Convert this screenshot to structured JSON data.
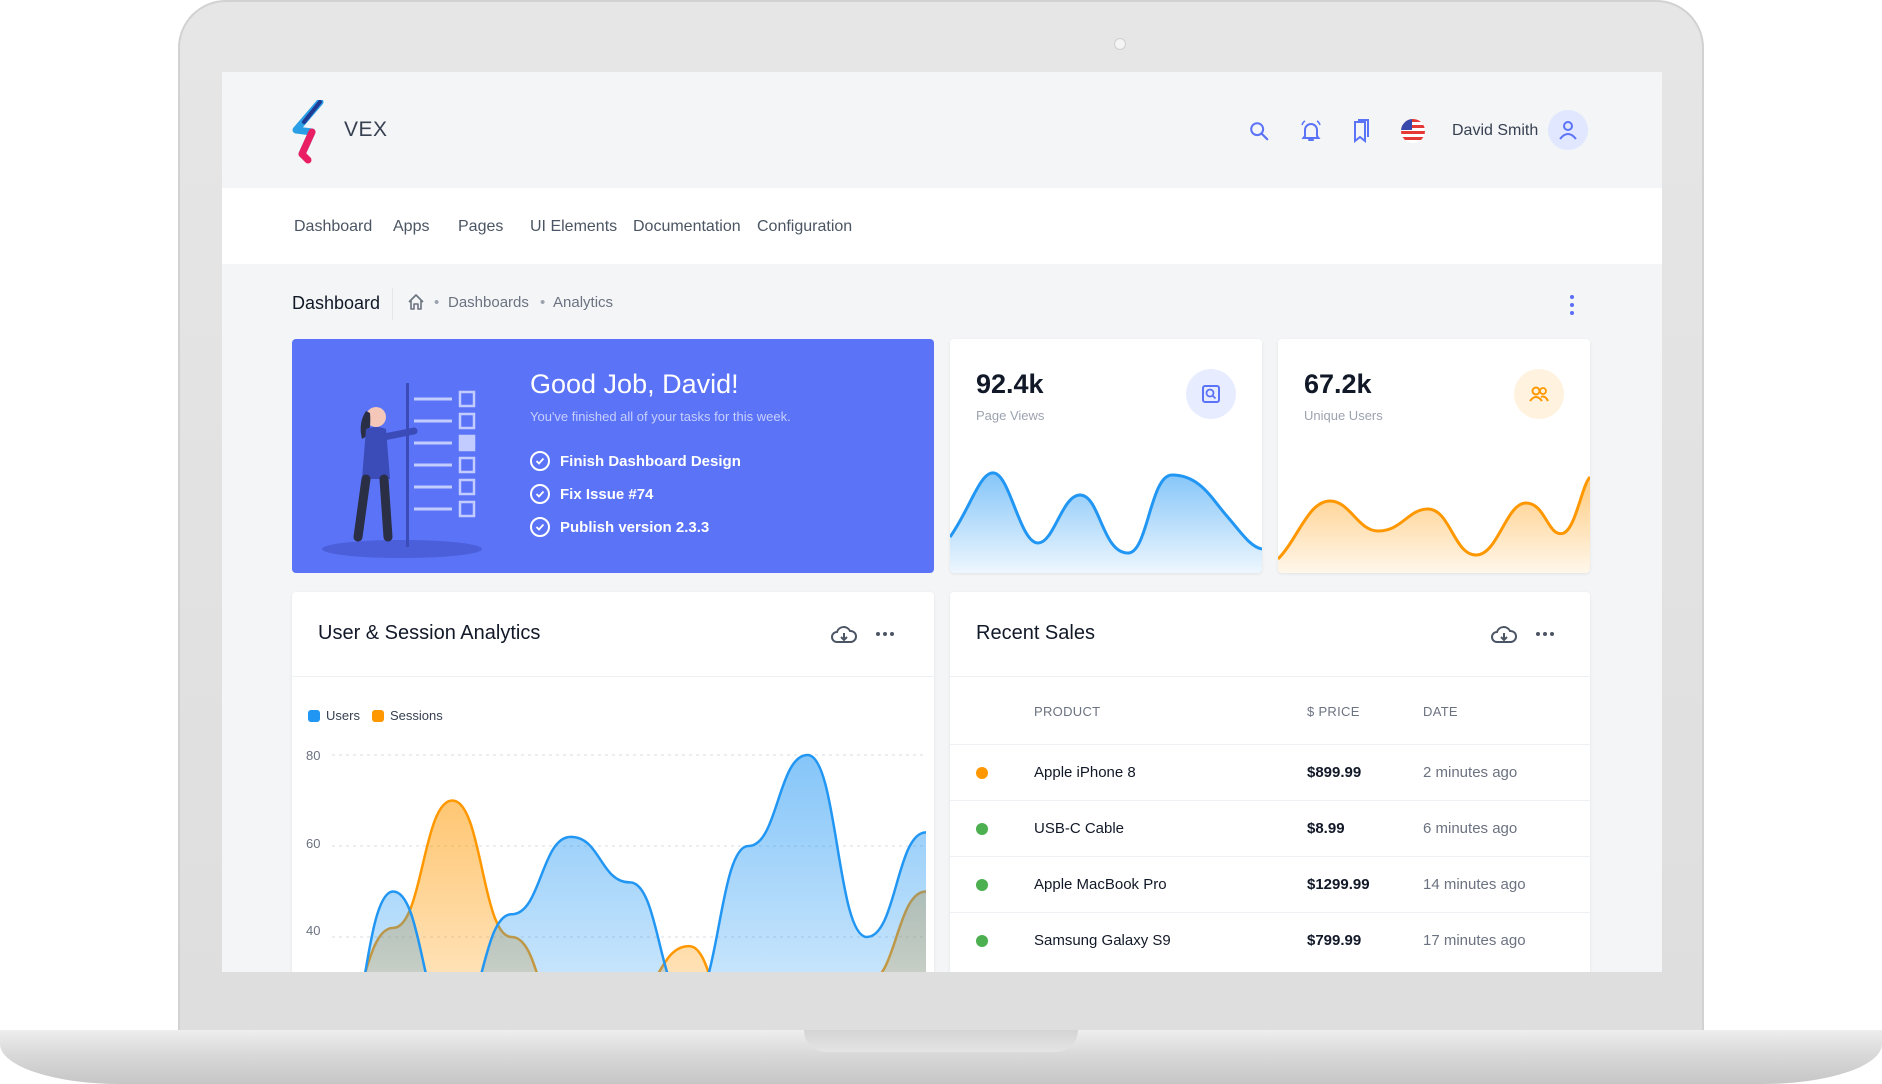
{
  "header": {
    "logo_text": "VEX",
    "user_name": "David Smith",
    "icons": [
      "search-icon",
      "notifications-icon",
      "bookmarks-icon",
      "us-flag-icon",
      "user-icon"
    ]
  },
  "nav": {
    "items": [
      "Dashboard",
      "Apps",
      "Pages",
      "UI Elements",
      "Documentation",
      "Configuration"
    ]
  },
  "breadcrumb": {
    "title": "Dashboard",
    "path": [
      "Dashboards",
      "Analytics"
    ]
  },
  "welcome": {
    "title": "Good Job, David!",
    "subtitle": "You've finished all of your tasks for this week.",
    "tasks": [
      "Finish Dashboard Design",
      "Fix Issue #74",
      "Publish version 2.3.3"
    ]
  },
  "stats": [
    {
      "value": "92.4k",
      "label": "Page Views",
      "color": "#2196f3"
    },
    {
      "value": "67.2k",
      "label": "Unique Users",
      "color": "#ff9800"
    }
  ],
  "analytics": {
    "title": "User & Session Analytics",
    "legend": [
      "Users",
      "Sessions"
    ]
  },
  "chart_data": {
    "type": "area",
    "y_ticks": [
      "80",
      "60",
      "40"
    ],
    "ylim": [
      20,
      85
    ],
    "series": [
      {
        "name": "Users",
        "color": "#2196f3",
        "values": [
          10,
          50,
          20,
          45,
          62,
          52,
          25,
          60,
          80,
          40,
          63
        ]
      },
      {
        "name": "Sessions",
        "color": "#ff9800",
        "values": [
          20,
          42,
          70,
          40,
          18,
          27,
          38,
          8,
          18,
          30,
          50
        ]
      }
    ]
  },
  "sales": {
    "title": "Recent Sales",
    "columns": [
      "PRODUCT",
      "$ PRICE",
      "DATE"
    ],
    "rows": [
      {
        "product": "Apple iPhone 8",
        "price": "$899.99",
        "date": "2 minutes ago",
        "status_color": "#ff9800"
      },
      {
        "product": "USB-C Cable",
        "price": "$8.99",
        "date": "6 minutes ago",
        "status_color": "#4caf50"
      },
      {
        "product": "Apple MacBook Pro",
        "price": "$1299.99",
        "date": "14 minutes ago",
        "status_color": "#4caf50"
      },
      {
        "product": "Samsung Galaxy S9",
        "price": "$799.99",
        "date": "17 minutes ago",
        "status_color": "#4caf50"
      }
    ]
  },
  "colors": {
    "primary": "#5b73f7",
    "blue": "#2196f3",
    "orange": "#ff9800",
    "green": "#4caf50"
  }
}
